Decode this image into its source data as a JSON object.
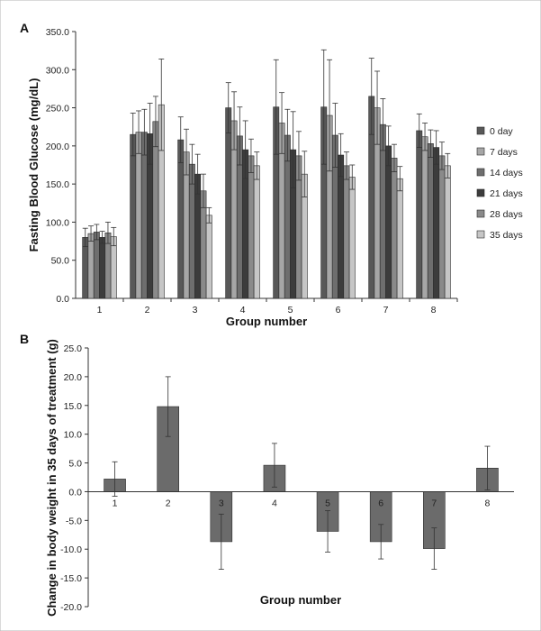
{
  "chart_data": [
    {
      "panel": "A",
      "type": "bar",
      "xlabel": "Group number",
      "ylabel": "Fasting Blood Glucose (mg/dL)",
      "ylim": [
        0,
        350
      ],
      "yticks": [
        "0.0",
        "50.0",
        "100.0",
        "150.0",
        "200.0",
        "250.0",
        "300.0",
        "350.0"
      ],
      "categories": [
        "1",
        "2",
        "3",
        "4",
        "5",
        "6",
        "7",
        "8"
      ],
      "legend_position": "right",
      "series": [
        {
          "name": "0 day",
          "color": "#585858",
          "values": [
            80,
            215,
            208,
            250,
            251,
            251,
            265,
            220
          ],
          "errors": [
            12,
            28,
            30,
            33,
            62,
            75,
            50,
            22
          ]
        },
        {
          "name": "7 days",
          "color": "#a6a6a6",
          "values": [
            85,
            218,
            192,
            233,
            230,
            240,
            250,
            212
          ],
          "errors": [
            10,
            28,
            30,
            38,
            40,
            73,
            48,
            18
          ]
        },
        {
          "name": "14 days",
          "color": "#6e6e6e",
          "values": [
            87,
            218,
            176,
            213,
            214,
            214,
            228,
            203
          ],
          "errors": [
            10,
            30,
            26,
            38,
            34,
            42,
            34,
            18
          ]
        },
        {
          "name": "21 days",
          "color": "#3c3c3c",
          "values": [
            80,
            216,
            163,
            195,
            195,
            188,
            200,
            198
          ],
          "errors": [
            8,
            40,
            26,
            38,
            50,
            28,
            26,
            22
          ]
        },
        {
          "name": "28 days",
          "color": "#8a8a8a",
          "values": [
            86,
            232,
            141,
            187,
            187,
            174,
            184,
            187
          ],
          "errors": [
            14,
            33,
            22,
            22,
            32,
            18,
            18,
            18
          ]
        },
        {
          "name": "35 days",
          "color": "#c6c6c6",
          "values": [
            81,
            254,
            109,
            174,
            163,
            159,
            157,
            174
          ],
          "errors": [
            12,
            60,
            10,
            18,
            30,
            16,
            16,
            16
          ]
        }
      ]
    },
    {
      "panel": "B",
      "type": "bar",
      "xlabel": "Group number",
      "ylabel": "Change in body weight in 35 days of treatment (g)",
      "ylim": [
        -20,
        25
      ],
      "yticks": [
        "-20.0",
        "-15.0",
        "-10.0",
        "-5.0",
        "0.0",
        "5.0",
        "10.0",
        "15.0",
        "20.0",
        "25.0"
      ],
      "categories": [
        "1",
        "2",
        "3",
        "4",
        "5",
        "6",
        "7",
        "8"
      ],
      "color": "#6b6b6b",
      "values": [
        2.2,
        14.8,
        -8.7,
        4.6,
        -6.9,
        -8.7,
        -9.9,
        4.1
      ],
      "errors": [
        3.0,
        5.2,
        4.8,
        3.8,
        3.6,
        3.0,
        3.6,
        3.8
      ]
    }
  ]
}
